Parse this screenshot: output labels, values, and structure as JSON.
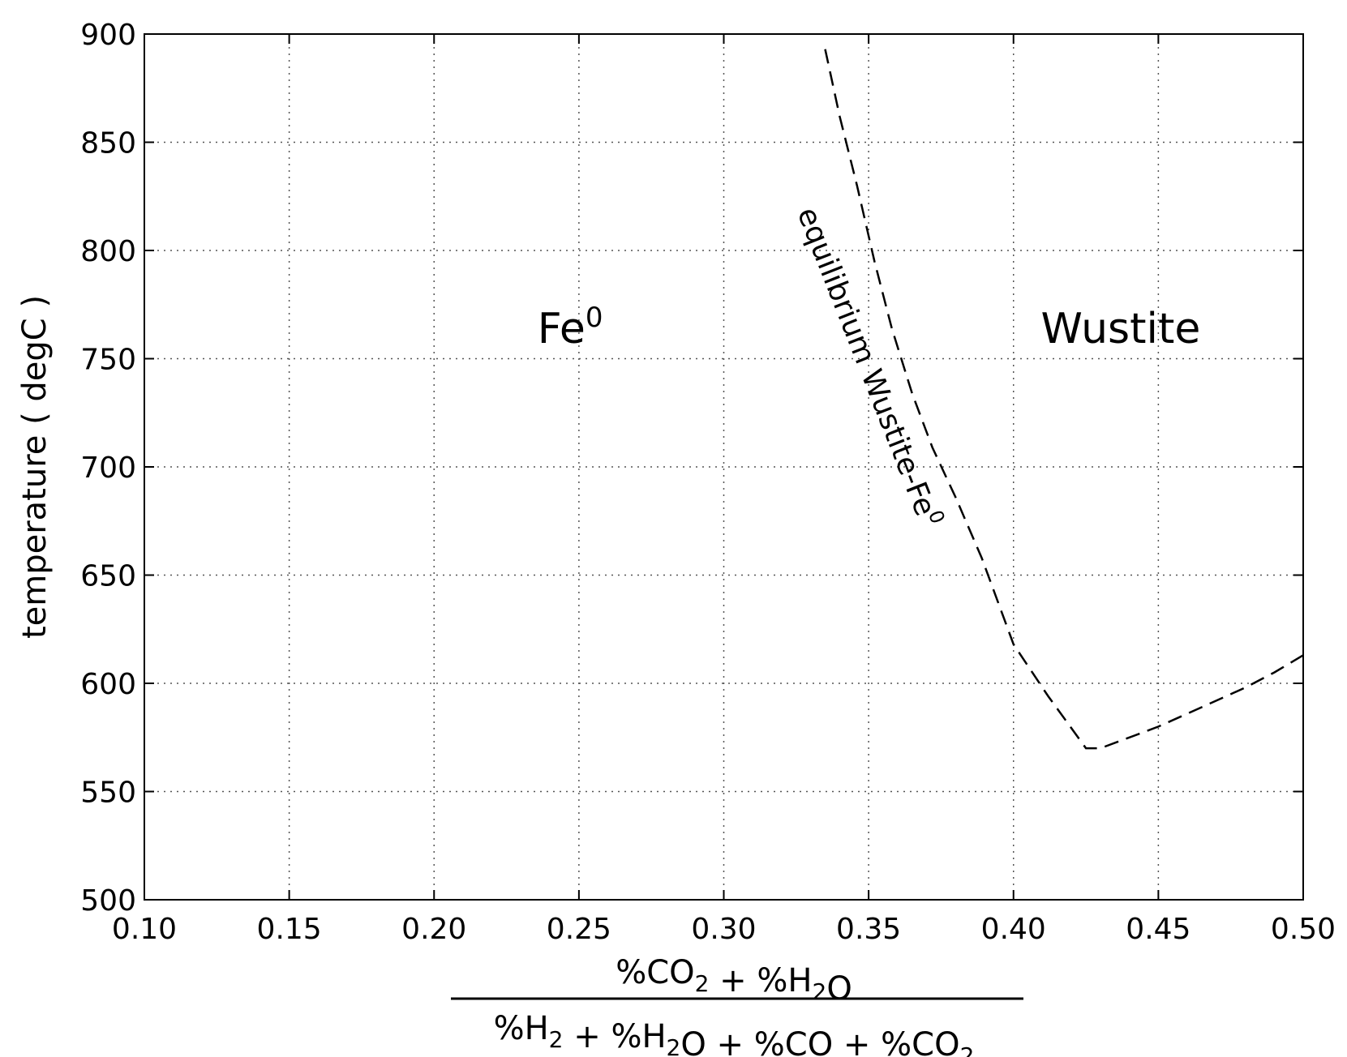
{
  "chart_data": {
    "type": "line",
    "title": "",
    "xlabel": {
      "numerator": "%CO2 + %H2O",
      "denominator": "%H2 + %H2O + %CO + %CO2"
    },
    "ylabel": "temperature ( degC )",
    "xlim": [
      0.1,
      0.5
    ],
    "ylim": [
      500,
      900
    ],
    "grid": true,
    "xticks": [
      "0.10",
      "0.15",
      "0.20",
      "0.25",
      "0.30",
      "0.35",
      "0.40",
      "0.45",
      "0.50"
    ],
    "yticks": [
      "500",
      "550",
      "600",
      "650",
      "700",
      "750",
      "800",
      "850",
      "900"
    ],
    "series": [
      {
        "name": "equilibrium Wustite-Fe0",
        "style": "dashed",
        "color": "#000000",
        "x": [
          0.335,
          0.34,
          0.346,
          0.352,
          0.358,
          0.365,
          0.372,
          0.38,
          0.389,
          0.4,
          0.412,
          0.425,
          0.43,
          0.44,
          0.45,
          0.46,
          0.47,
          0.48,
          0.49,
          0.5
        ],
        "y": [
          893,
          862,
          830,
          795,
          764,
          734,
          709,
          686,
          658,
          618,
          594,
          570,
          570,
          575,
          580,
          586,
          592,
          598,
          605,
          613
        ]
      }
    ],
    "annotations": {
      "curve_label": {
        "base": "equilibrium Wustite-Fe",
        "superscript": "0"
      },
      "region_left": {
        "base": "Fe",
        "superscript": "0",
        "x": 0.247,
        "y": 752
      },
      "region_right": {
        "text": "Wustite",
        "x": 0.437,
        "y": 752
      }
    }
  }
}
